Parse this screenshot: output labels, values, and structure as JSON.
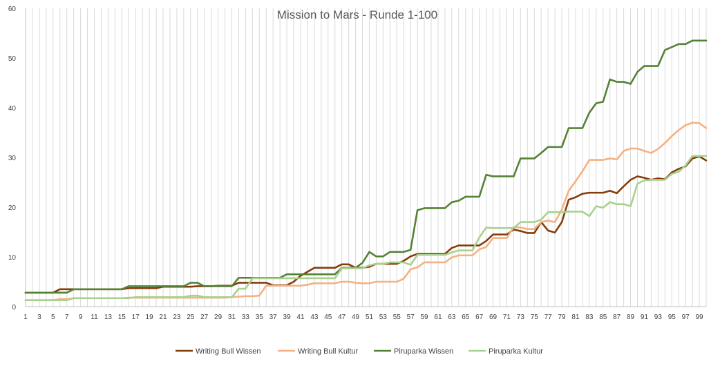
{
  "chart_data": {
    "type": "line",
    "title": "Mission to Mars - Runde 1-100",
    "xlabel": "",
    "ylabel": "",
    "x": [
      1,
      2,
      3,
      4,
      5,
      6,
      7,
      8,
      9,
      10,
      11,
      12,
      13,
      14,
      15,
      16,
      17,
      18,
      19,
      20,
      21,
      22,
      23,
      24,
      25,
      26,
      27,
      28,
      29,
      30,
      31,
      32,
      33,
      34,
      35,
      36,
      37,
      38,
      39,
      40,
      41,
      42,
      43,
      44,
      45,
      46,
      47,
      48,
      49,
      50,
      51,
      52,
      53,
      54,
      55,
      56,
      57,
      58,
      59,
      60,
      61,
      62,
      63,
      64,
      65,
      66,
      67,
      68,
      69,
      70,
      71,
      72,
      73,
      74,
      75,
      76,
      77,
      78,
      79,
      80,
      81,
      82,
      83,
      84,
      85,
      86,
      87,
      88,
      89,
      90,
      91,
      92,
      93,
      94,
      95,
      96,
      97,
      98,
      99,
      100
    ],
    "xtick_labels": [
      "1",
      "3",
      "5",
      "7",
      "9",
      "11",
      "13",
      "15",
      "17",
      "19",
      "21",
      "23",
      "25",
      "27",
      "29",
      "31",
      "33",
      "35",
      "37",
      "39",
      "41",
      "43",
      "45",
      "47",
      "49",
      "51",
      "53",
      "55",
      "57",
      "59",
      "61",
      "63",
      "65",
      "67",
      "69",
      "71",
      "73",
      "75",
      "77",
      "79",
      "81",
      "83",
      "85",
      "87",
      "89",
      "91",
      "93",
      "95",
      "97",
      "99"
    ],
    "ylim": [
      0,
      60
    ],
    "yticks": [
      0,
      10,
      20,
      30,
      40,
      50,
      60
    ],
    "grid": "vertical",
    "legend": "bottom",
    "series": [
      {
        "name": "Writing Bull Wissen",
        "color": "#843c0c",
        "values": [
          2.8,
          2.8,
          2.8,
          2.8,
          2.8,
          3.5,
          3.5,
          3.5,
          3.5,
          3.5,
          3.5,
          3.5,
          3.5,
          3.5,
          3.5,
          3.7,
          3.7,
          3.7,
          3.7,
          3.7,
          4.0,
          4.0,
          4.0,
          4.0,
          4.0,
          4.1,
          4.1,
          4.1,
          4.2,
          4.2,
          4.2,
          4.8,
          4.8,
          4.8,
          4.8,
          4.8,
          4.3,
          4.3,
          4.3,
          5.0,
          6.2,
          7.0,
          7.8,
          7.8,
          7.8,
          7.8,
          8.5,
          8.5,
          7.8,
          7.8,
          8.0,
          8.6,
          8.6,
          8.6,
          8.6,
          9.2,
          10.1,
          10.6,
          10.6,
          10.6,
          10.6,
          10.6,
          11.8,
          12.3,
          12.3,
          12.3,
          12.3,
          13.2,
          14.5,
          14.5,
          14.5,
          15.5,
          15.2,
          14.8,
          14.8,
          17.0,
          15.3,
          14.9,
          17.0,
          21.5,
          22.0,
          22.7,
          22.9,
          22.9,
          22.9,
          23.3,
          22.8,
          24.2,
          25.5,
          26.2,
          25.9,
          25.5,
          25.8,
          25.6,
          27.0,
          27.7,
          28.2,
          29.8,
          30.2,
          29.4
        ]
      },
      {
        "name": "Writing Bull Kultur",
        "color": "#f4b183",
        "values": [
          1.3,
          1.3,
          1.3,
          1.3,
          1.3,
          1.5,
          1.5,
          1.7,
          1.7,
          1.7,
          1.7,
          1.7,
          1.7,
          1.7,
          1.7,
          1.8,
          1.8,
          1.8,
          1.8,
          1.8,
          1.8,
          1.8,
          1.8,
          1.8,
          1.8,
          1.8,
          1.8,
          1.8,
          1.8,
          1.8,
          1.9,
          2.0,
          2.1,
          2.1,
          2.2,
          4.2,
          4.2,
          4.2,
          4.2,
          4.2,
          4.2,
          4.4,
          4.7,
          4.7,
          4.7,
          4.7,
          5.0,
          5.0,
          4.8,
          4.7,
          4.7,
          5.0,
          5.0,
          5.0,
          5.0,
          5.6,
          7.5,
          7.9,
          8.9,
          8.9,
          8.9,
          8.9,
          9.9,
          10.3,
          10.3,
          10.3,
          11.5,
          12.0,
          13.8,
          13.8,
          13.8,
          16.0,
          15.9,
          15.6,
          15.6,
          17.0,
          17.3,
          17.0,
          19.5,
          23.3,
          25.2,
          27.2,
          29.5,
          29.5,
          29.5,
          29.8,
          29.6,
          31.3,
          31.8,
          31.8,
          31.3,
          30.9,
          31.7,
          32.9,
          34.3,
          35.5,
          36.5,
          37.0,
          36.9,
          35.9
        ]
      },
      {
        "name": "Piruparka Wissen",
        "color": "#548235",
        "values": [
          2.8,
          2.8,
          2.8,
          2.8,
          2.8,
          2.8,
          2.8,
          3.5,
          3.5,
          3.5,
          3.5,
          3.5,
          3.5,
          3.5,
          3.5,
          4.1,
          4.1,
          4.1,
          4.1,
          4.1,
          4.1,
          4.1,
          4.1,
          4.1,
          4.8,
          4.8,
          4.1,
          4.1,
          4.1,
          4.1,
          4.1,
          5.8,
          5.8,
          5.8,
          5.8,
          5.8,
          5.8,
          5.8,
          6.5,
          6.5,
          6.5,
          6.5,
          6.5,
          6.5,
          6.5,
          6.5,
          7.8,
          7.8,
          7.8,
          8.8,
          11.0,
          10.1,
          10.1,
          11.0,
          11.0,
          11.0,
          11.4,
          19.4,
          19.8,
          19.8,
          19.8,
          19.8,
          21.0,
          21.3,
          22.1,
          22.1,
          22.1,
          26.5,
          26.2,
          26.2,
          26.2,
          26.2,
          29.8,
          29.8,
          29.8,
          30.9,
          32.1,
          32.1,
          32.1,
          35.9,
          35.9,
          35.9,
          39.0,
          40.9,
          41.2,
          45.7,
          45.2,
          45.2,
          44.8,
          47.2,
          48.4,
          48.4,
          48.4,
          51.6,
          52.2,
          52.8,
          52.8,
          53.5,
          53.5,
          53.5
        ]
      },
      {
        "name": "Piruparka Kultur",
        "color": "#a9d18e",
        "values": [
          1.3,
          1.3,
          1.3,
          1.3,
          1.3,
          1.3,
          1.3,
          1.7,
          1.7,
          1.7,
          1.7,
          1.7,
          1.7,
          1.7,
          1.7,
          1.7,
          1.9,
          1.9,
          1.9,
          1.9,
          1.9,
          1.9,
          1.9,
          1.9,
          2.2,
          2.2,
          1.9,
          1.9,
          1.9,
          1.9,
          1.9,
          3.6,
          3.6,
          5.7,
          5.7,
          5.7,
          5.7,
          5.7,
          5.7,
          5.7,
          5.7,
          5.7,
          5.7,
          5.7,
          5.7,
          5.7,
          7.7,
          7.7,
          7.7,
          7.7,
          8.3,
          8.6,
          8.6,
          8.9,
          8.9,
          8.9,
          8.4,
          10.4,
          10.4,
          10.4,
          10.4,
          10.4,
          10.9,
          11.3,
          11.3,
          11.3,
          13.9,
          15.9,
          15.8,
          15.8,
          15.8,
          15.8,
          17.0,
          17.0,
          17.0,
          17.5,
          19.0,
          19.0,
          19.0,
          19.1,
          19.1,
          19.1,
          18.2,
          20.2,
          19.9,
          21.0,
          20.6,
          20.6,
          20.2,
          24.7,
          25.4,
          25.5,
          25.5,
          25.5,
          26.7,
          27.1,
          28.4,
          30.3,
          30.3,
          30.3
        ]
      }
    ]
  }
}
